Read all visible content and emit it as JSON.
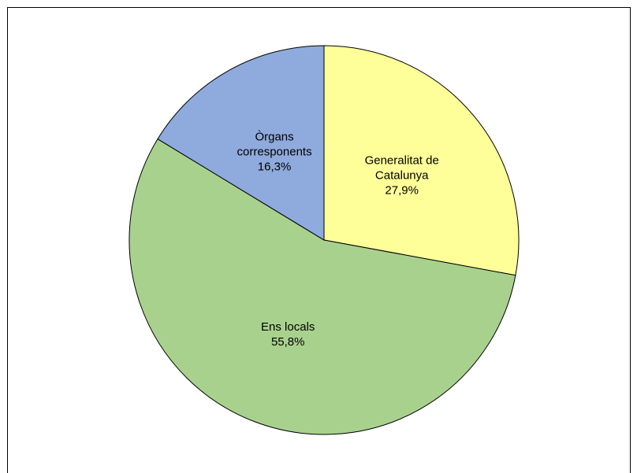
{
  "chart_data": {
    "type": "pie",
    "categories": [
      "Generalitat de Catalunya",
      "Ens locals",
      "Òrgans corresponents"
    ],
    "values": [
      27.9,
      55.8,
      16.3
    ],
    "value_labels": [
      "27,9%",
      "55,8%",
      "16,3%"
    ],
    "colors": [
      "#ffff99",
      "#a9d18e",
      "#8faadc"
    ]
  }
}
